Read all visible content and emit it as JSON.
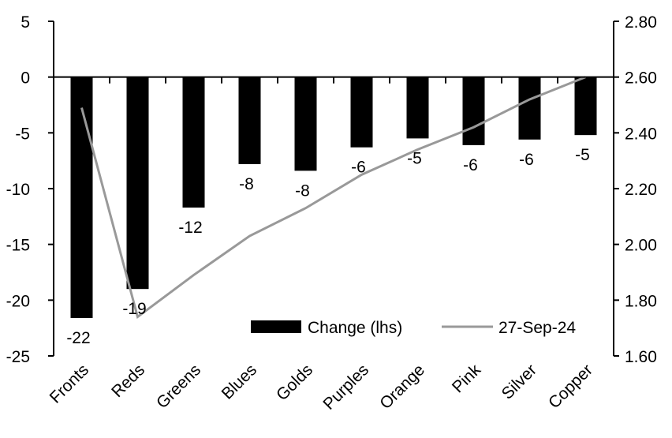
{
  "chart_data": {
    "type": "bar",
    "categories": [
      "Fronts",
      "Reds",
      "Greens",
      "Blues",
      "Golds",
      "Purples",
      "Orange",
      "Pink",
      "Silver",
      "Copper"
    ],
    "series": [
      {
        "name": "Change (lhs)",
        "type": "bar",
        "axis": "left",
        "values": [
          -21.6,
          -19.0,
          -11.7,
          -7.8,
          -8.4,
          -6.3,
          -5.5,
          -6.1,
          -5.6,
          -5.2
        ],
        "data_labels": [
          "-22",
          "-19",
          "-12",
          "-8",
          "-8",
          "-6",
          "-5",
          "-6",
          "-6",
          "-5"
        ],
        "color": "#000000"
      },
      {
        "name": "27-Sep-24",
        "type": "line",
        "axis": "right",
        "values": [
          2.49,
          1.74,
          1.89,
          2.03,
          2.13,
          2.25,
          2.34,
          2.42,
          2.52,
          2.6
        ],
        "color": "#999999"
      }
    ],
    "left_axis": {
      "ylim": [
        -25,
        5
      ],
      "ticks": [
        "5",
        "0",
        "-5",
        "-10",
        "-15",
        "-20",
        "-25"
      ],
      "tick_values": [
        5,
        0,
        -5,
        -10,
        -15,
        -20,
        -25
      ]
    },
    "right_axis": {
      "ylim": [
        1.6,
        2.8
      ],
      "ticks": [
        "2.80",
        "2.60",
        "2.40",
        "2.20",
        "2.00",
        "1.80",
        "1.60"
      ],
      "tick_values": [
        2.8,
        2.6,
        2.4,
        2.2,
        2.0,
        1.8,
        1.6
      ]
    },
    "grid": false,
    "legend_placement": "bottom-right"
  }
}
